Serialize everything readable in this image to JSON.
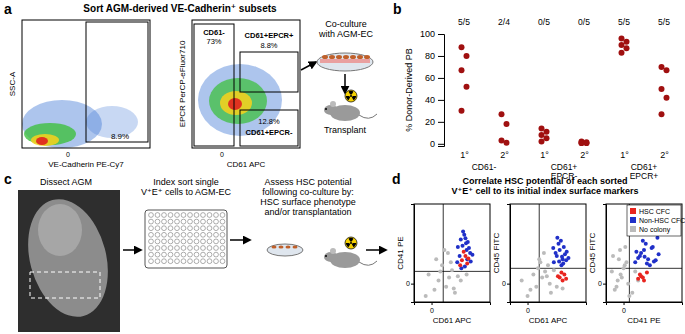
{
  "diagram": {
    "panel_labels": [
      "a",
      "b",
      "c",
      "d"
    ],
    "panel_a": {
      "title": "Sort AGM-derived VE-Cadherin⁺ subsets",
      "plot1": {
        "x_label": "VE-Cadherin PE-Cy7",
        "y_label": "SSC-A",
        "x_tick": "0",
        "gate_percent": "8.9%"
      },
      "plot2": {
        "x_label": "CD61 APC",
        "y_label": "EPCR PerCP-eFluor710",
        "x_tick": "0",
        "gates": [
          {
            "name": "CD61-",
            "percent": "73%"
          },
          {
            "name": "CD61+EPCR+",
            "percent": "8.8%"
          },
          {
            "name": "CD61+EPCR-",
            "percent": "12.8%"
          }
        ]
      },
      "coculture": [
        "Co-culture",
        "with AGM-EC"
      ],
      "transplant": "Transplant"
    },
    "panel_c": {
      "dissect": "Dissect AGM",
      "index_sort": [
        "Index sort single",
        "V⁺E⁺ cells to AGM-EC"
      ],
      "assess": [
        "Assess HSC potential",
        "following co-culture by:",
        "HSC surface phenotype",
        "and/or transplantation"
      ]
    },
    "panel_d": {
      "title": [
        "Correlate HSC potential of each sorted",
        "V⁺E⁺ cell to its initial index surface markers"
      ]
    }
  },
  "chart_data": [
    {
      "type": "strip",
      "ylabel": "% Donor-Derived PB",
      "categories": [
        "1°",
        "2°",
        "1°",
        "2°",
        "1°",
        "2°"
      ],
      "group_labels": [
        [
          "CD61-"
        ],
        [
          "CD61+",
          "EPCR-"
        ],
        [
          "CD61+",
          "EPCR+"
        ]
      ],
      "annotations": [
        "5/5",
        "2/4",
        "0/5",
        "0/5",
        "5/5",
        "5/5"
      ],
      "values": [
        [
          88,
          80,
          67,
          52,
          30
        ],
        [
          27,
          18,
          3,
          1
        ],
        [
          14,
          11,
          8,
          5,
          2
        ],
        [
          2,
          1.5,
          1,
          0.5,
          0.5
        ],
        [
          96,
          93,
          90,
          87,
          83
        ],
        [
          70,
          67,
          50,
          42,
          27
        ]
      ],
      "color": "#a01010",
      "ylim": [
        -2,
        100
      ],
      "yticks": [
        0,
        20,
        40,
        60,
        80,
        100
      ]
    },
    {
      "type": "scatter",
      "xlabel": "CD61 APC",
      "ylabel": "CD41 PE",
      "xlim": [
        -30,
        100
      ],
      "ylim": [
        -30,
        130
      ],
      "xticks": [
        0
      ],
      "yticks": [
        0
      ],
      "gates": {
        "x": 20,
        "y": 20
      },
      "series": [
        {
          "color": "#e8251f",
          "x": [
            52,
            58,
            61,
            55,
            63,
            49
          ],
          "values": [
            38,
            45,
            33,
            52,
            41,
            30
          ]
        },
        {
          "color": "#2030c8",
          "x": [
            45,
            50,
            56,
            60,
            62,
            66,
            48,
            53,
            58,
            64,
            70,
            44,
            57,
            61,
            51,
            67,
            54,
            59
          ],
          "values": [
            60,
            72,
            80,
            55,
            68,
            50,
            45,
            62,
            74,
            58,
            47,
            35,
            28,
            40,
            25,
            36,
            85,
            66
          ]
        },
        {
          "color": "#bbbbbb",
          "x": [
            5,
            12,
            -5,
            25,
            30,
            35,
            40,
            18,
            8,
            45,
            50,
            28,
            38,
            -10,
            15,
            60,
            33,
            22
          ],
          "values": [
            -10,
            5,
            15,
            -5,
            10,
            22,
            -15,
            30,
            40,
            12,
            5,
            50,
            -8,
            -20,
            20,
            15,
            35,
            55
          ]
        }
      ]
    },
    {
      "type": "scatter",
      "xlabel": "CD61 APC",
      "ylabel": "CD45 FITC",
      "xlim": [
        -30,
        100
      ],
      "ylim": [
        -30,
        130
      ],
      "xticks": [
        0
      ],
      "yticks": [
        0
      ],
      "gates": {
        "x": 20,
        "y": 25
      },
      "series": [
        {
          "color": "#e8251f",
          "x": [
            55,
            60,
            63,
            58,
            66,
            52
          ],
          "values": [
            10,
            5,
            15,
            18,
            8,
            12
          ]
        },
        {
          "color": "#2030c8",
          "x": [
            45,
            50,
            55,
            60,
            62,
            66,
            48,
            53,
            58,
            64,
            70,
            44,
            57,
            61,
            51,
            67,
            54,
            59
          ],
          "values": [
            35,
            45,
            55,
            40,
            60,
            38,
            50,
            65,
            30,
            48,
            42,
            58,
            70,
            33,
            75,
            52,
            36,
            44
          ]
        },
        {
          "color": "#bbbbbb",
          "x": [
            5,
            -10,
            15,
            25,
            30,
            40,
            35,
            20,
            10,
            50,
            45,
            28,
            38,
            0,
            18,
            60,
            33,
            22
          ],
          "values": [
            -10,
            5,
            -5,
            10,
            20,
            -15,
            30,
            40,
            15,
            -5,
            22,
            50,
            0,
            -20,
            25,
            -8,
            12,
            35
          ]
        }
      ]
    },
    {
      "type": "scatter",
      "xlabel": "CD41 PE",
      "ylabel": "CD45 FITC",
      "xlim": [
        -30,
        100
      ],
      "ylim": [
        -30,
        130
      ],
      "xticks": [
        0
      ],
      "yticks": [
        0
      ],
      "gates": {
        "x": 10,
        "y": 25
      },
      "legend": "upper right",
      "series": [
        {
          "name": "HSC CFC",
          "color": "#e8251f",
          "x": [
            25,
            30,
            35,
            28,
            40,
            33
          ],
          "values": [
            8,
            12,
            5,
            15,
            18,
            10
          ]
        },
        {
          "name": "Non-HSC CFC",
          "color": "#2030c8",
          "x": [
            20,
            28,
            35,
            42,
            50,
            55,
            30,
            38,
            45,
            60,
            25,
            48,
            33,
            40,
            58,
            22,
            52,
            36
          ],
          "values": [
            35,
            45,
            55,
            40,
            60,
            38,
            50,
            65,
            30,
            48,
            42,
            58,
            70,
            33,
            75,
            52,
            36,
            44
          ]
        },
        {
          "name": "No colony",
          "color": "#bbbbbb",
          "x": [
            -15,
            -10,
            -5,
            0,
            5,
            -20,
            -12,
            -8,
            -3,
            2,
            8,
            -18,
            15,
            20,
            25,
            -6,
            3,
            10
          ],
          "values": [
            -10,
            5,
            15,
            25,
            35,
            20,
            -5,
            40,
            10,
            30,
            0,
            45,
            -15,
            20,
            5,
            55,
            60,
            -20
          ]
        }
      ]
    }
  ]
}
